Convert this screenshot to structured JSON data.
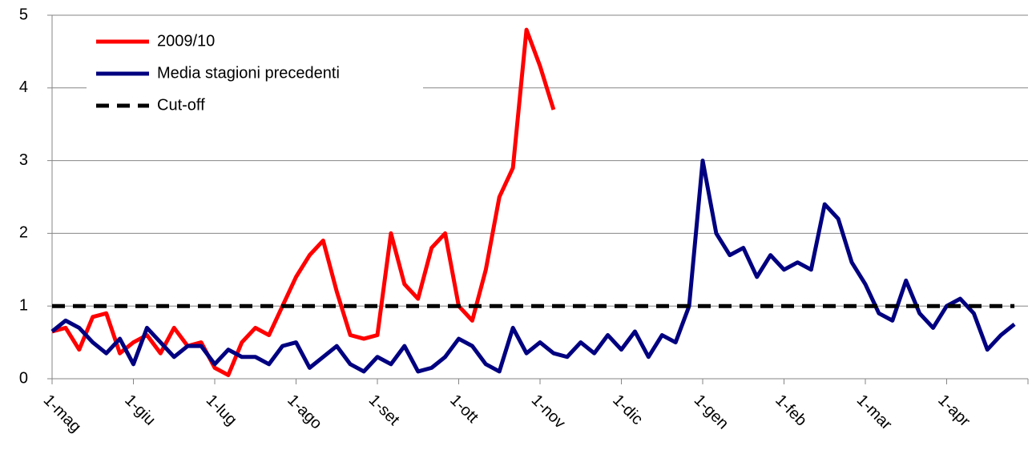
{
  "chart_data": {
    "type": "line",
    "categories": [
      "1-mag",
      null,
      null,
      null,
      null,
      null,
      "1-giu",
      null,
      null,
      null,
      null,
      null,
      "1-lug",
      null,
      null,
      null,
      null,
      null,
      "1-ago",
      null,
      null,
      null,
      null,
      null,
      "1-set",
      null,
      null,
      null,
      null,
      null,
      "1-ott",
      null,
      null,
      null,
      null,
      null,
      "1-nov",
      null,
      null,
      null,
      null,
      null,
      "1-dic",
      null,
      null,
      null,
      null,
      null,
      "1-gen",
      null,
      null,
      null,
      null,
      null,
      "1-feb",
      null,
      null,
      null,
      null,
      null,
      "1-mar",
      null,
      null,
      null,
      null,
      null,
      "1-apr",
      null,
      null,
      null,
      null,
      null
    ],
    "series": [
      {
        "name": "2009/10",
        "color": "#ff0000",
        "dashed": false,
        "values": [
          0.65,
          0.7,
          0.4,
          0.85,
          0.9,
          0.35,
          0.5,
          0.6,
          0.35,
          0.7,
          0.45,
          0.5,
          0.15,
          0.05,
          0.5,
          0.7,
          0.6,
          1.0,
          1.4,
          1.7,
          1.9,
          1.2,
          0.6,
          0.55,
          0.6,
          2.0,
          1.3,
          1.1,
          1.8,
          2.0,
          1.0,
          0.8,
          1.5,
          2.5,
          2.9,
          4.8,
          4.3,
          3.7,
          null,
          null,
          null,
          null,
          null,
          null,
          null,
          null,
          null,
          null,
          null,
          null,
          null,
          null,
          null,
          null,
          null,
          null,
          null,
          null,
          null,
          null,
          null,
          null,
          null,
          null,
          null,
          null,
          null,
          null,
          null,
          null,
          null,
          null
        ]
      },
      {
        "name": "Media stagioni precedenti",
        "color": "#000080",
        "dashed": false,
        "values": [
          0.65,
          0.8,
          0.7,
          0.5,
          0.35,
          0.55,
          0.2,
          0.7,
          0.5,
          0.3,
          0.45,
          0.45,
          0.2,
          0.4,
          0.3,
          0.3,
          0.2,
          0.45,
          0.5,
          0.15,
          0.3,
          0.45,
          0.2,
          0.1,
          0.3,
          0.2,
          0.45,
          0.1,
          0.15,
          0.3,
          0.55,
          0.45,
          0.2,
          0.1,
          0.7,
          0.35,
          0.5,
          0.35,
          0.3,
          0.5,
          0.35,
          0.6,
          0.4,
          0.65,
          0.3,
          0.6,
          0.5,
          1.0,
          3.0,
          2.0,
          1.7,
          1.8,
          1.4,
          1.7,
          1.5,
          1.6,
          1.5,
          2.4,
          2.2,
          1.6,
          1.3,
          0.9,
          0.8,
          1.35,
          0.9,
          0.7,
          1.0,
          1.1,
          0.9,
          0.4,
          0.6,
          0.75
        ]
      },
      {
        "name": "Cut-off",
        "color": "#000000",
        "dashed": true,
        "values": [
          1,
          1,
          1,
          1,
          1,
          1,
          1,
          1,
          1,
          1,
          1,
          1,
          1,
          1,
          1,
          1,
          1,
          1,
          1,
          1,
          1,
          1,
          1,
          1,
          1,
          1,
          1,
          1,
          1,
          1,
          1,
          1,
          1,
          1,
          1,
          1,
          1,
          1,
          1,
          1,
          1,
          1,
          1,
          1,
          1,
          1,
          1,
          1,
          1,
          1,
          1,
          1,
          1,
          1,
          1,
          1,
          1,
          1,
          1,
          1,
          1,
          1,
          1,
          1,
          1,
          1,
          1,
          1,
          1,
          1,
          1,
          1
        ]
      }
    ],
    "ylim": [
      0,
      5
    ],
    "yticks": [
      0,
      1,
      2,
      3,
      4,
      5
    ],
    "grid": true,
    "legend": "upper-left"
  }
}
